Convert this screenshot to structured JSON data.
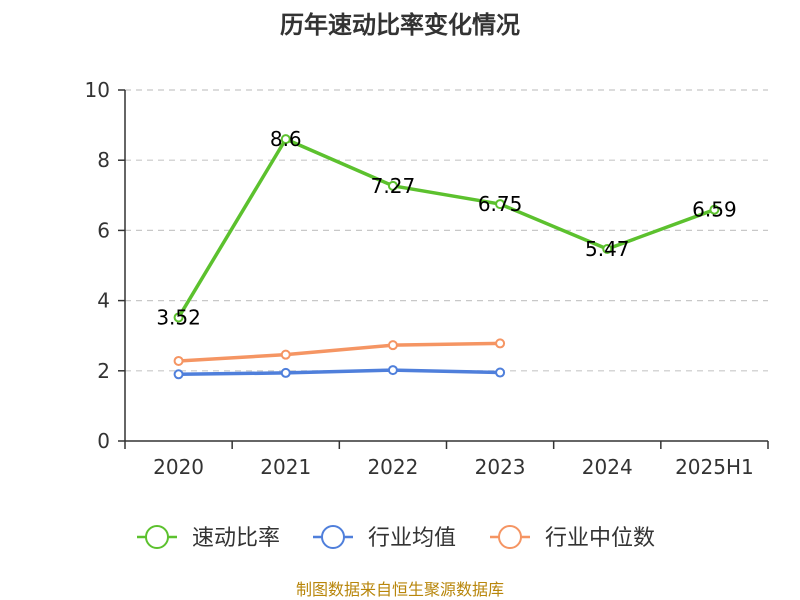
{
  "chart_data": {
    "type": "line",
    "title": "历年速动比率变化情况",
    "categories": [
      "2020",
      "2021",
      "2022",
      "2023",
      "2024",
      "2025H1"
    ],
    "ylim": [
      0,
      10
    ],
    "yticks": [
      0,
      2,
      4,
      6,
      8,
      10
    ],
    "grid": "horizontal-dashed",
    "legend_position": "bottom",
    "series": [
      {
        "name": "速动比率",
        "color": "#5cc12e",
        "values": [
          3.52,
          8.6,
          7.27,
          6.75,
          5.47,
          6.59
        ],
        "labels": [
          "3.52",
          "8.6",
          "7.27",
          "6.75",
          "5.47",
          "6.59"
        ]
      },
      {
        "name": "行业均值",
        "color": "#4f7fdb",
        "values": [
          1.9,
          1.94,
          2.02,
          1.95,
          null,
          null
        ]
      },
      {
        "name": "行业中位数",
        "color": "#f59563",
        "values": [
          2.28,
          2.46,
          2.73,
          2.78,
          null,
          null
        ]
      }
    ],
    "source": "制图数据来自恒生聚源数据库"
  }
}
